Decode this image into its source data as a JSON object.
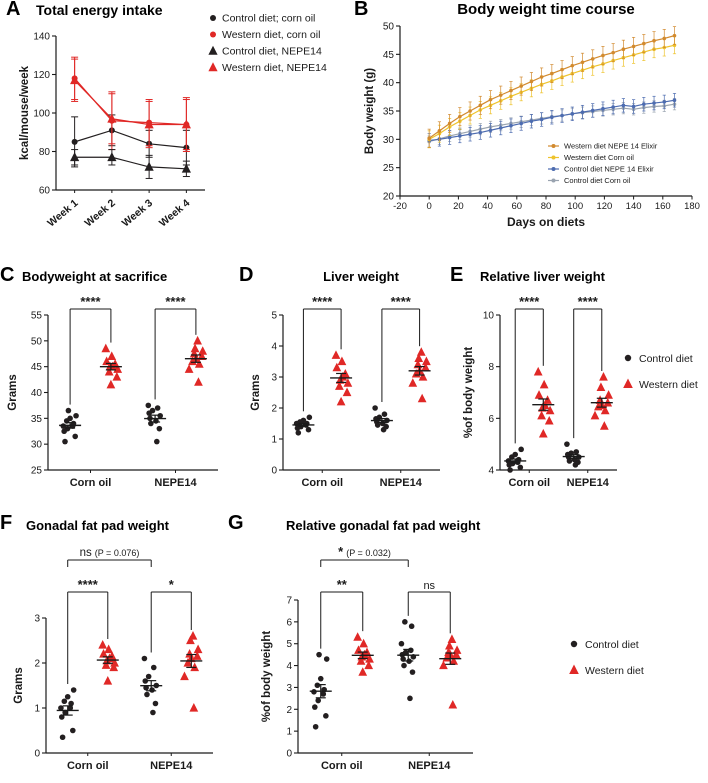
{
  "colors": {
    "black": "#231f20",
    "red": "#e02826",
    "orange": "#d28a2e",
    "yellow": "#eec32d",
    "blue": "#4d6cb0",
    "gray": "#9aa4b0"
  },
  "chart_data": [
    {
      "panel": "A",
      "label": "A",
      "title": "Total energy intake",
      "type": "line-category",
      "categories": [
        "Week 1",
        "Week 2",
        "Week 3",
        "Week 4"
      ],
      "ylabel": "kcal/mouse/week",
      "ylim": [
        60,
        140
      ],
      "yticks": [
        60,
        80,
        100,
        120,
        140
      ],
      "series": [
        {
          "name": "Control diet; corn oil",
          "marker": "circle",
          "color": "black",
          "values": [
            85,
            91,
            84,
            82
          ],
          "errors": [
            13,
            8,
            7,
            9
          ]
        },
        {
          "name": "Western diet, corn oil",
          "marker": "circle",
          "color": "red",
          "values": [
            118,
            96,
            95,
            94
          ],
          "errors": [
            11,
            15,
            12,
            13
          ]
        },
        {
          "name": "Control diet, NEPE14",
          "marker": "triangle",
          "color": "black",
          "values": [
            77,
            77,
            72,
            71
          ],
          "errors": [
            4,
            4,
            6,
            4
          ]
        },
        {
          "name": "Western diet, NEPE14",
          "marker": "triangle",
          "color": "red",
          "values": [
            117,
            97,
            94,
            94
          ],
          "errors": [
            11,
            13,
            12,
            14
          ]
        }
      ]
    },
    {
      "panel": "B",
      "label": "B",
      "title": "Body weight time course",
      "type": "line-numeric",
      "xlabel": "Days on diets",
      "ylabel": "Body weight (g)",
      "xlim": [
        -20,
        180
      ],
      "xticks": [
        -20,
        0,
        20,
        40,
        60,
        80,
        100,
        120,
        140,
        160,
        180
      ],
      "ylim": [
        20,
        50
      ],
      "yticks": [
        20,
        25,
        30,
        35,
        40,
        45,
        50
      ],
      "x": [
        0,
        7,
        14,
        21,
        28,
        35,
        42,
        49,
        56,
        63,
        70,
        77,
        84,
        91,
        98,
        105,
        112,
        119,
        126,
        133,
        140,
        147,
        154,
        161,
        168
      ],
      "series": [
        {
          "name": "Western diet NEPE 14 Elixir",
          "color": "orange",
          "error": 1.6,
          "values": [
            30.2,
            31.5,
            32.8,
            34.0,
            35.0,
            36.0,
            37.0,
            37.8,
            38.6,
            39.4,
            40.2,
            41.0,
            41.6,
            42.3,
            43.0,
            43.6,
            44.2,
            44.8,
            45.3,
            45.9,
            46.4,
            46.9,
            47.4,
            47.8,
            48.3
          ]
        },
        {
          "name": "Western diet Corn oil",
          "color": "yellow",
          "error": 1.5,
          "values": [
            30.0,
            31.0,
            32.2,
            33.2,
            34.2,
            35.2,
            36.0,
            36.8,
            37.6,
            38.3,
            39.0,
            39.7,
            40.3,
            41.0,
            41.6,
            42.2,
            42.8,
            43.3,
            43.9,
            44.4,
            44.9,
            45.4,
            45.9,
            46.2,
            46.6
          ]
        },
        {
          "name": "Control diet NEPE 14 Elixir",
          "color": "blue",
          "error": 1.2,
          "values": [
            29.8,
            30.0,
            30.3,
            30.6,
            30.9,
            31.2,
            31.6,
            32.0,
            32.4,
            32.8,
            33.2,
            33.5,
            33.9,
            34.2,
            34.5,
            34.8,
            35.1,
            35.4,
            35.7,
            36.0,
            35.8,
            36.2,
            36.4,
            36.6,
            36.9
          ]
        },
        {
          "name": "Control diet Corn oil",
          "color": "gray",
          "error": 1.0,
          "values": [
            29.6,
            30.1,
            30.6,
            31.0,
            31.4,
            31.8,
            32.2,
            32.5,
            32.8,
            33.1,
            33.4,
            33.7,
            34.0,
            34.2,
            34.5,
            34.7,
            34.9,
            35.1,
            35.3,
            35.5,
            35.3,
            35.6,
            35.8,
            35.9,
            36.2
          ]
        }
      ]
    },
    {
      "panel": "C",
      "label": "C",
      "title": "Bodyweight at sacrifice",
      "type": "scatter-groups",
      "ylabel": "Grams",
      "ylim": [
        25,
        55
      ],
      "yticks": [
        25,
        30,
        35,
        40,
        45,
        50,
        55
      ],
      "groups": [
        "Corn oil",
        "NEPE14"
      ],
      "series": [
        {
          "name": "Control diet",
          "marker": "circle",
          "color": "black",
          "points": [
            [
              30.5,
              31.5,
              32.5,
              33.0,
              33.5,
              33.5,
              34.0,
              34.5,
              35.0,
              35.5,
              36.5
            ],
            [
              30.5,
              33.0,
              34.0,
              34.5,
              35.0,
              35.5,
              36.0,
              36.5,
              37.0,
              37.5
            ]
          ]
        },
        {
          "name": "Western diet",
          "marker": "triangle",
          "color": "red",
          "points": [
            [
              41.5,
              43.0,
              44.0,
              44.5,
              45.0,
              45.0,
              45.5,
              46.0,
              47.0,
              48.5
            ],
            [
              42.0,
              44.5,
              45.5,
              46.0,
              46.5,
              47.0,
              47.5,
              48.0,
              48.5,
              50.0
            ]
          ]
        }
      ],
      "significance": {
        "pairs": [
          "****",
          "****"
        ]
      }
    },
    {
      "panel": "D",
      "label": "D",
      "title": "Liver weight",
      "type": "scatter-groups",
      "ylabel": "Grams",
      "ylim": [
        0,
        5
      ],
      "yticks": [
        0,
        1,
        2,
        3,
        4,
        5
      ],
      "groups": [
        "Corn oil",
        "NEPE14"
      ],
      "series": [
        {
          "name": "Control diet",
          "marker": "circle",
          "color": "black",
          "points": [
            [
              1.2,
              1.3,
              1.35,
              1.4,
              1.45,
              1.5,
              1.5,
              1.55,
              1.6,
              1.7
            ],
            [
              1.3,
              1.4,
              1.45,
              1.5,
              1.55,
              1.6,
              1.65,
              1.7,
              1.8,
              2.0
            ]
          ]
        },
        {
          "name": "Western diet",
          "marker": "triangle",
          "color": "red",
          "points": [
            [
              2.2,
              2.5,
              2.7,
              2.8,
              2.9,
              3.0,
              3.1,
              3.3,
              3.5,
              3.7
            ],
            [
              2.3,
              2.8,
              3.0,
              3.1,
              3.2,
              3.3,
              3.4,
              3.5,
              3.6,
              3.8
            ]
          ]
        }
      ],
      "significance": {
        "pairs": [
          "****",
          "****"
        ]
      }
    },
    {
      "panel": "E",
      "label": "E",
      "title": "Relative liver weight",
      "type": "scatter-groups",
      "ylabel": "%of body weight",
      "ylim": [
        4,
        10
      ],
      "yticks": [
        4,
        6,
        8,
        10
      ],
      "groups": [
        "Corn oil",
        "NEPE14"
      ],
      "series": [
        {
          "name": "Control diet",
          "marker": "circle",
          "color": "black",
          "points": [
            [
              4.0,
              4.1,
              4.2,
              4.25,
              4.3,
              4.35,
              4.4,
              4.5,
              4.6,
              4.8
            ],
            [
              4.2,
              4.3,
              4.35,
              4.4,
              4.5,
              4.5,
              4.6,
              4.65,
              4.7,
              5.0
            ]
          ]
        },
        {
          "name": "Western diet",
          "marker": "triangle",
          "color": "red",
          "points": [
            [
              5.4,
              5.9,
              6.1,
              6.3,
              6.4,
              6.5,
              6.7,
              6.9,
              7.3,
              7.8
            ],
            [
              5.7,
              6.1,
              6.3,
              6.45,
              6.5,
              6.6,
              6.7,
              6.9,
              7.2,
              7.6
            ]
          ]
        }
      ],
      "significance": {
        "pairs": [
          "****",
          "****"
        ]
      },
      "legend": true
    },
    {
      "panel": "F",
      "label": "F",
      "title": "Gonadal fat pad weight",
      "type": "scatter-groups",
      "ylabel": "Grams",
      "ylim": [
        0,
        3
      ],
      "yticks": [
        0,
        1,
        2,
        3
      ],
      "groups": [
        "Corn oil",
        "NEPE14"
      ],
      "series": [
        {
          "name": "Control diet",
          "marker": "circle",
          "color": "black",
          "points": [
            [
              0.35,
              0.5,
              0.8,
              0.9,
              1.0,
              1.0,
              1.1,
              1.15,
              1.25,
              1.4
            ],
            [
              0.9,
              1.1,
              1.3,
              1.4,
              1.45,
              1.5,
              1.6,
              1.7,
              1.9,
              2.1
            ]
          ]
        },
        {
          "name": "Western diet",
          "marker": "triangle",
          "color": "red",
          "points": [
            [
              1.6,
              1.9,
              1.95,
              2.0,
              2.05,
              2.1,
              2.15,
              2.2,
              2.3,
              2.4
            ],
            [
              1.0,
              1.7,
              1.9,
              2.0,
              2.1,
              2.15,
              2.2,
              2.3,
              2.5,
              2.6
            ]
          ]
        }
      ],
      "significance": {
        "pairs": [
          "****",
          "*"
        ],
        "top": {
          "label": "ns",
          "detail": "(P = 0.076)"
        }
      }
    },
    {
      "panel": "G",
      "label": "G",
      "title": "Relative gonadal fat pad weight",
      "type": "scatter-groups",
      "ylabel": "%of body weight",
      "ylim": [
        0,
        7
      ],
      "yticks": [
        0,
        1,
        2,
        3,
        4,
        5,
        6,
        7
      ],
      "groups": [
        "Corn oil",
        "NEPE14"
      ],
      "series": [
        {
          "name": "Control diet",
          "marker": "circle",
          "color": "black",
          "points": [
            [
              1.2,
              1.7,
              2.1,
              2.4,
              2.7,
              2.8,
              2.9,
              3.1,
              3.4,
              4.3,
              4.5
            ],
            [
              2.5,
              3.7,
              4.0,
              4.2,
              4.3,
              4.4,
              4.5,
              4.6,
              4.7,
              5.0,
              5.8,
              6.0
            ]
          ]
        },
        {
          "name": "Western diet",
          "marker": "triangle",
          "color": "red",
          "points": [
            [
              3.7,
              4.0,
              4.2,
              4.3,
              4.4,
              4.5,
              4.6,
              4.7,
              5.0,
              5.3
            ],
            [
              2.2,
              4.0,
              4.2,
              4.35,
              4.5,
              4.5,
              4.6,
              4.7,
              4.9,
              5.2
            ]
          ]
        }
      ],
      "significance": {
        "pairs": [
          "**",
          "ns"
        ],
        "top": {
          "label": "*",
          "detail": "(P = 0.032)"
        }
      },
      "legend": true
    }
  ]
}
